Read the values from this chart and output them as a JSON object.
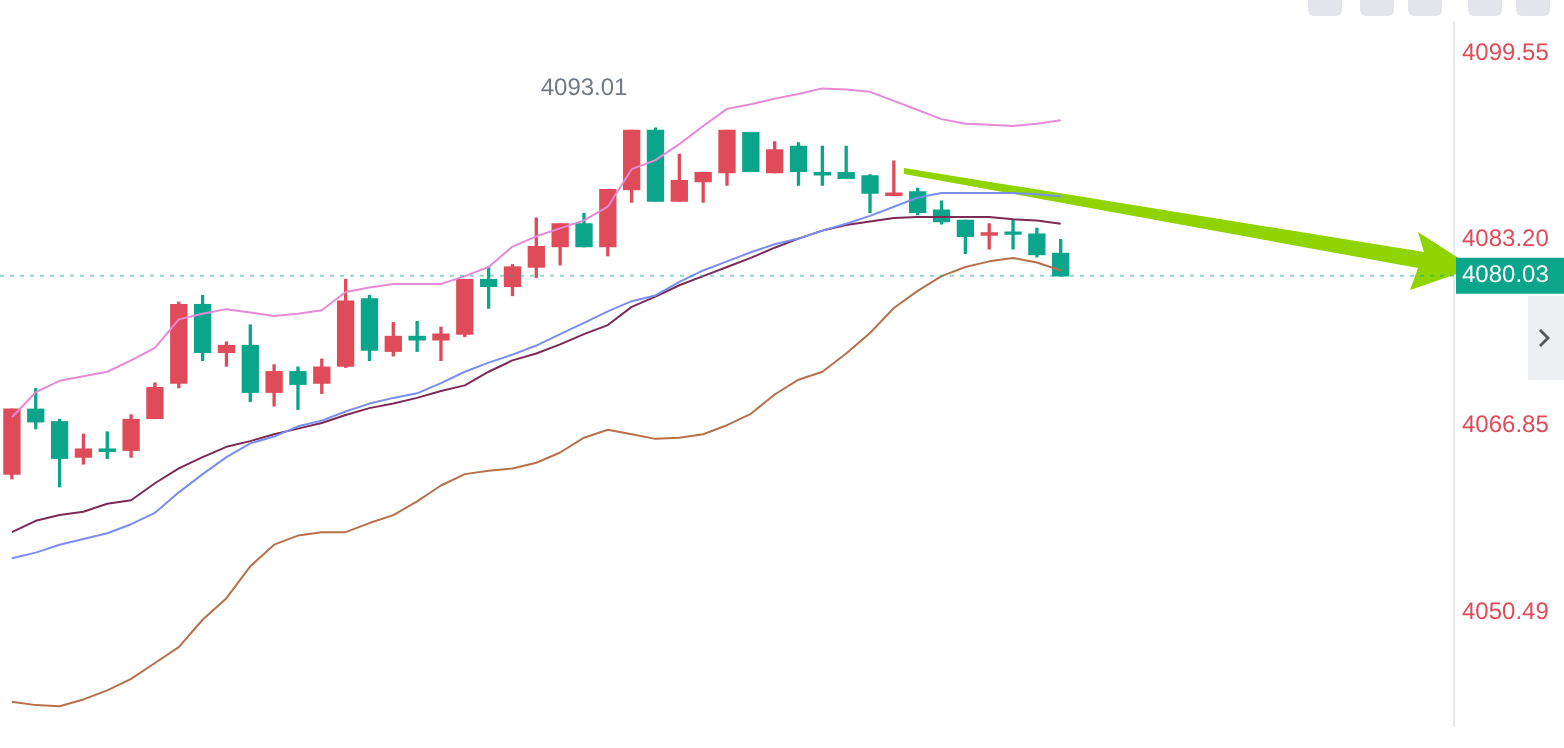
{
  "chart_data": {
    "type": "candlestick",
    "categories": [
      null,
      null,
      null,
      null,
      null,
      null,
      null,
      null,
      null,
      null,
      null,
      null,
      null,
      null,
      null,
      null,
      null,
      null,
      null,
      null,
      null,
      null,
      null,
      null,
      null,
      null,
      null,
      null,
      null,
      null,
      null,
      null,
      null,
      null,
      null,
      null,
      null,
      null,
      null,
      null,
      null,
      null,
      null,
      null,
      null,
      null,
      null,
      null,
      null,
      null,
      null,
      null,
      null,
      null,
      null,
      null,
      null,
      null,
      null,
      null,
      null
    ],
    "ohlc": [
      [
        4062.6,
        4068.3,
        4062.2,
        4068.3
      ],
      [
        4068.3,
        4070.1,
        4066.6,
        4067.2
      ],
      [
        4067.2,
        4067.4,
        4061.5,
        4064.0
      ],
      [
        4064.1,
        4066.1,
        4063.5,
        4064.8
      ],
      [
        4064.8,
        4066.3,
        4064.0,
        4064.6
      ],
      [
        4064.7,
        4067.8,
        4064.1,
        4067.4
      ],
      [
        4067.5,
        4070.6,
        4067.5,
        4070.2
      ],
      [
        4070.6,
        4077.7,
        4070.2,
        4077.5
      ],
      [
        4077.5,
        4078.3,
        4072.6,
        4073.3
      ],
      [
        4073.3,
        4074.2,
        4072.1,
        4073.9
      ],
      [
        4073.9,
        4075.7,
        4069.0,
        4069.8
      ],
      [
        4069.8,
        4072.2,
        4068.6,
        4071.6
      ],
      [
        4071.6,
        4072.0,
        4068.3,
        4070.5
      ],
      [
        4070.6,
        4072.7,
        4069.7,
        4072.0
      ],
      [
        4072.1,
        4079.7,
        4072.0,
        4077.8
      ],
      [
        4078.0,
        4078.3,
        4072.6,
        4073.5
      ],
      [
        4073.4,
        4075.9,
        4073.0,
        4074.7
      ],
      [
        4074.7,
        4076.0,
        4073.4,
        4074.4
      ],
      [
        4074.4,
        4075.5,
        4072.6,
        4074.9
      ],
      [
        4074.9,
        4079.7,
        4074.7,
        4079.7
      ],
      [
        4079.7,
        4080.8,
        4077.2,
        4079.1
      ],
      [
        4079.1,
        4081.0,
        4078.3,
        4080.8
      ],
      [
        4080.8,
        4085.1,
        4079.9,
        4082.6
      ],
      [
        4082.6,
        4084.6,
        4081.0,
        4084.6
      ],
      [
        4084.6,
        4085.5,
        4082.6,
        4082.6
      ],
      [
        4082.6,
        4087.6,
        4081.8,
        4087.6
      ],
      [
        4087.6,
        4092.8,
        4086.5,
        4092.8
      ],
      [
        4092.8,
        4093.01,
        4086.6,
        4086.6
      ],
      [
        4086.6,
        4090.7,
        4086.6,
        4088.4
      ],
      [
        4088.3,
        4089.1,
        4086.5,
        4089.1
      ],
      [
        4089.1,
        4092.8,
        4088.0,
        4092.8
      ],
      [
        4092.6,
        4092.6,
        4089.2,
        4089.2
      ],
      [
        4089.1,
        4091.8,
        4089.1,
        4091.1
      ],
      [
        4091.4,
        4091.7,
        4088.0,
        4089.2
      ],
      [
        4089.1,
        4091.4,
        4088.0,
        4088.9
      ],
      [
        4089.1,
        4091.4,
        4088.6,
        4088.6
      ],
      [
        4088.8,
        4088.9,
        4085.6,
        4087.3
      ],
      [
        4087.1,
        4090.1,
        4087.1,
        4087.3
      ],
      [
        4087.4,
        4087.7,
        4085.4,
        4085.6
      ],
      [
        4085.8,
        4086.6,
        4084.6,
        4084.8
      ],
      [
        4084.9,
        4084.9,
        4082.0,
        4083.5
      ],
      [
        4083.6,
        4084.6,
        4082.4,
        4083.8
      ],
      [
        4083.8,
        4084.9,
        4082.4,
        4083.7
      ],
      [
        4083.7,
        4084.2,
        4081.7,
        4081.9
      ],
      [
        4082.0,
        4083.2,
        4080.03,
        4080.03
      ],
      null,
      null,
      null,
      null,
      null,
      null,
      null,
      null,
      null,
      null,
      null,
      null,
      null,
      null,
      null,
      null
    ],
    "colors": [
      "#e04b5a",
      "#0aa58a",
      "#0aa58a",
      "#e04b5a",
      "#0aa58a",
      "#e04b5a",
      "#e04b5a",
      "#e04b5a",
      "#0aa58a",
      "#e04b5a",
      "#0aa58a",
      "#e04b5a",
      "#0aa58a",
      "#e04b5a",
      "#e04b5a",
      "#0aa58a",
      "#e04b5a",
      "#0aa58a",
      "#e04b5a",
      "#e04b5a",
      "#0aa58a",
      "#e04b5a",
      "#e04b5a",
      "#e04b5a",
      "#0aa58a",
      "#e04b5a",
      "#e04b5a",
      "#0aa58a",
      "#e04b5a",
      "#e04b5a",
      "#e04b5a",
      "#0aa58a",
      "#e04b5a",
      "#0aa58a",
      "#0aa58a",
      "#0aa58a",
      "#0aa58a",
      "#e04b5a",
      "#0aa58a",
      "#0aa58a",
      "#0aa58a",
      "#e04b5a",
      "#0aa58a",
      "#0aa58a",
      "#0aa58a",
      null,
      null,
      null,
      null,
      null,
      null,
      null,
      null,
      null,
      null,
      null,
      null,
      null,
      null,
      null,
      null
    ],
    "series": [
      {
        "type": "line",
        "color": "#e58ad6",
        "values": [
          4067.6,
          4069.8,
          4070.8,
          4071.2,
          4071.6,
          4072.6,
          4073.7,
          4076.2,
          4076.7,
          4077.1,
          4076.8,
          4076.5,
          4076.7,
          4077.0,
          4078.6,
          4079.0,
          4079.3,
          4079.3,
          4079.3,
          4080.0,
          4080.8,
          4082.6,
          4083.5,
          4084.2,
          4084.9,
          4086.1,
          4089.4,
          4090.2,
          4091.6,
          4093.2,
          4094.7,
          4095.1,
          4095.6,
          4096.0,
          4096.5,
          4096.4,
          4096.2,
          4095.4,
          4094.6,
          4093.8,
          4093.4,
          4093.3,
          4093.2,
          4093.4,
          4093.7,
          null,
          null,
          null,
          null,
          null,
          null,
          null,
          null,
          null,
          null,
          null,
          null,
          null,
          null,
          null,
          null
        ]
      },
      {
        "type": "line",
        "color": "#7a8ef0",
        "values": [
          4055.2,
          4055.7,
          4056.4,
          4056.9,
          4057.4,
          4058.2,
          4059.2,
          4061.0,
          4062.6,
          4064.1,
          4065.3,
          4065.9,
          4066.8,
          4067.3,
          4068.1,
          4068.8,
          4069.3,
          4069.7,
          4070.6,
          4071.6,
          4072.4,
          4073.1,
          4073.9,
          4074.9,
          4075.9,
          4076.9,
          4077.8,
          4078.3,
          4079.5,
          4080.5,
          4081.3,
          4082.1,
          4082.8,
          4083.3,
          4084.0,
          4084.6,
          4085.3,
          4086.1,
          4086.9,
          4087.3,
          4087.3,
          4087.3,
          4087.3,
          4087.2,
          4087.0,
          null,
          null,
          null,
          null,
          null,
          null,
          null,
          null,
          null,
          null,
          null,
          null,
          null,
          null,
          null,
          null
        ]
      },
      {
        "type": "line",
        "color": "#7b2a55",
        "values": [
          4057.5,
          4058.5,
          4059.0,
          4059.3,
          4060.0,
          4060.3,
          4061.8,
          4063.1,
          4064.1,
          4065.0,
          4065.5,
          4066.1,
          4066.6,
          4067.1,
          4067.8,
          4068.4,
          4068.8,
          4069.3,
          4069.9,
          4070.4,
          4071.6,
          4072.6,
          4073.2,
          4074.0,
          4074.9,
          4075.7,
          4077.3,
          4078.2,
          4079.2,
          4080.0,
          4080.8,
          4081.6,
          4082.5,
          4083.3,
          4084.0,
          4084.5,
          4084.8,
          4085.1,
          4085.2,
          4085.2,
          4085.2,
          4085.2,
          4085.0,
          4084.9,
          4084.6,
          null,
          null,
          null,
          null,
          null,
          null,
          null,
          null,
          null,
          null,
          null,
          null,
          null,
          null,
          null,
          null
        ]
      },
      {
        "type": "line",
        "color": "#b8704a",
        "values": [
          4042.6,
          4042.3,
          4042.2,
          4042.8,
          4043.6,
          4044.6,
          4046.0,
          4047.4,
          4049.8,
          4051.7,
          4054.5,
          4056.4,
          4057.2,
          4057.5,
          4057.5,
          4058.3,
          4059.0,
          4060.2,
          4061.6,
          4062.6,
          4062.9,
          4063.1,
          4063.6,
          4064.5,
          4065.8,
          4066.5,
          4066.1,
          4065.7,
          4065.8,
          4066.1,
          4066.9,
          4067.9,
          4069.6,
          4070.9,
          4071.6,
          4073.2,
          4075.0,
          4077.2,
          4078.7,
          4080.0,
          4080.8,
          4081.3,
          4081.6,
          4081.2,
          4080.5,
          null,
          null,
          null,
          null,
          null,
          null,
          null,
          null,
          null,
          null,
          null,
          null,
          null,
          null,
          null,
          null
        ]
      }
    ],
    "ylim": [
      4040.5,
      4102.3
    ],
    "yticks": [
      4050.49,
      4066.85,
      {
        "value": 4083.2,
        "label": "4083.20"
      },
      4099.55
    ],
    "ref_lines": [
      {
        "axis": "y",
        "value": 4080.03,
        "label": "4080.03",
        "color": "#0aa58a",
        "line_style": "dotted"
      }
    ],
    "annotations": [
      "4093.01"
    ],
    "legend": false,
    "grid": false
  }
}
